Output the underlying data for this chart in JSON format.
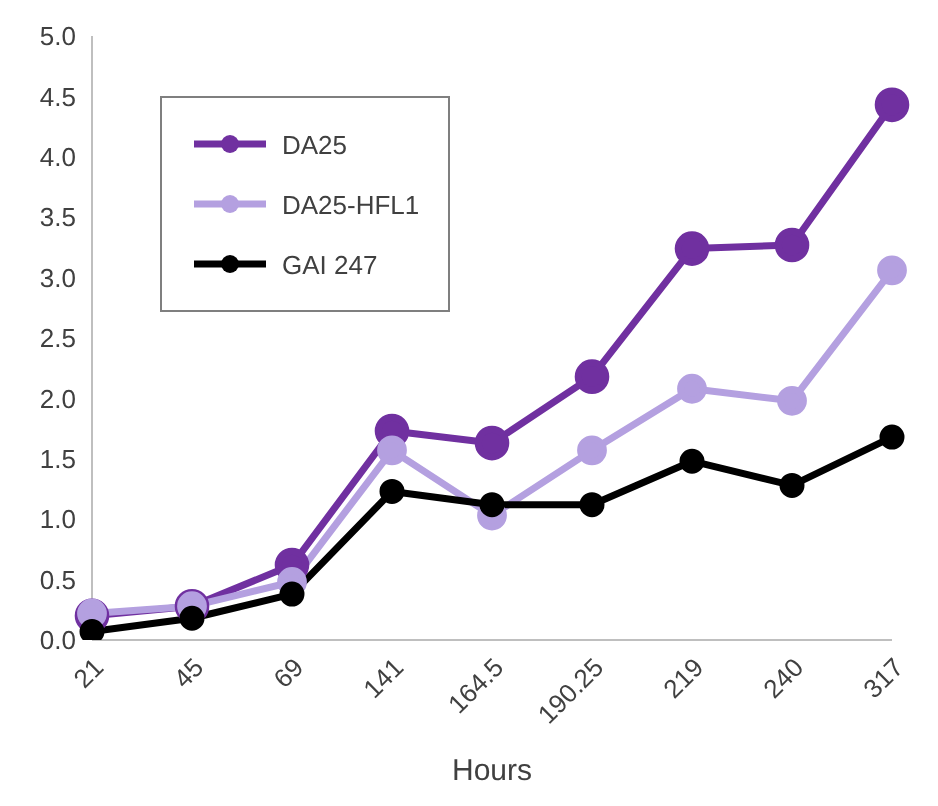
{
  "chart_data": {
    "type": "line",
    "xlabel": "Hours",
    "categories": [
      "21",
      "45",
      "69",
      "141",
      "164.5",
      "190.25",
      "219",
      "240",
      "317"
    ],
    "series": [
      {
        "name": "DA25",
        "color": "#7030a0",
        "values": [
          0.2,
          0.28,
          0.62,
          1.73,
          1.63,
          2.18,
          3.24,
          3.27,
          4.43
        ]
      },
      {
        "name": "DA25-HFL1",
        "color": "#b4a0e0",
        "values": [
          0.22,
          0.28,
          0.48,
          1.57,
          1.03,
          1.57,
          2.08,
          1.98,
          3.06
        ]
      },
      {
        "name": "GAI 247",
        "color": "#000000",
        "values": [
          0.07,
          0.18,
          0.38,
          1.23,
          1.12,
          1.12,
          1.48,
          1.28,
          1.68
        ]
      }
    ],
    "ylim": [
      0,
      5
    ],
    "yticks": [
      {
        "value": 0,
        "label": "0.0"
      },
      {
        "value": 0.5,
        "label": "0.5"
      },
      {
        "value": 1,
        "label": "1.0"
      },
      {
        "value": 1.5,
        "label": "1.5"
      },
      {
        "value": 2,
        "label": "2.0"
      },
      {
        "value": 2.5,
        "label": "2.5"
      },
      {
        "value": 3,
        "label": "3.0"
      },
      {
        "value": 3.5,
        "label": "3.5"
      },
      {
        "value": 4,
        "label": "4.0"
      },
      {
        "value": 4.5,
        "label": "4.5"
      },
      {
        "value": 5,
        "label": "5.0"
      }
    ],
    "grid": false,
    "legend": "top left",
    "marker": "circle",
    "line_style": "solid"
  }
}
